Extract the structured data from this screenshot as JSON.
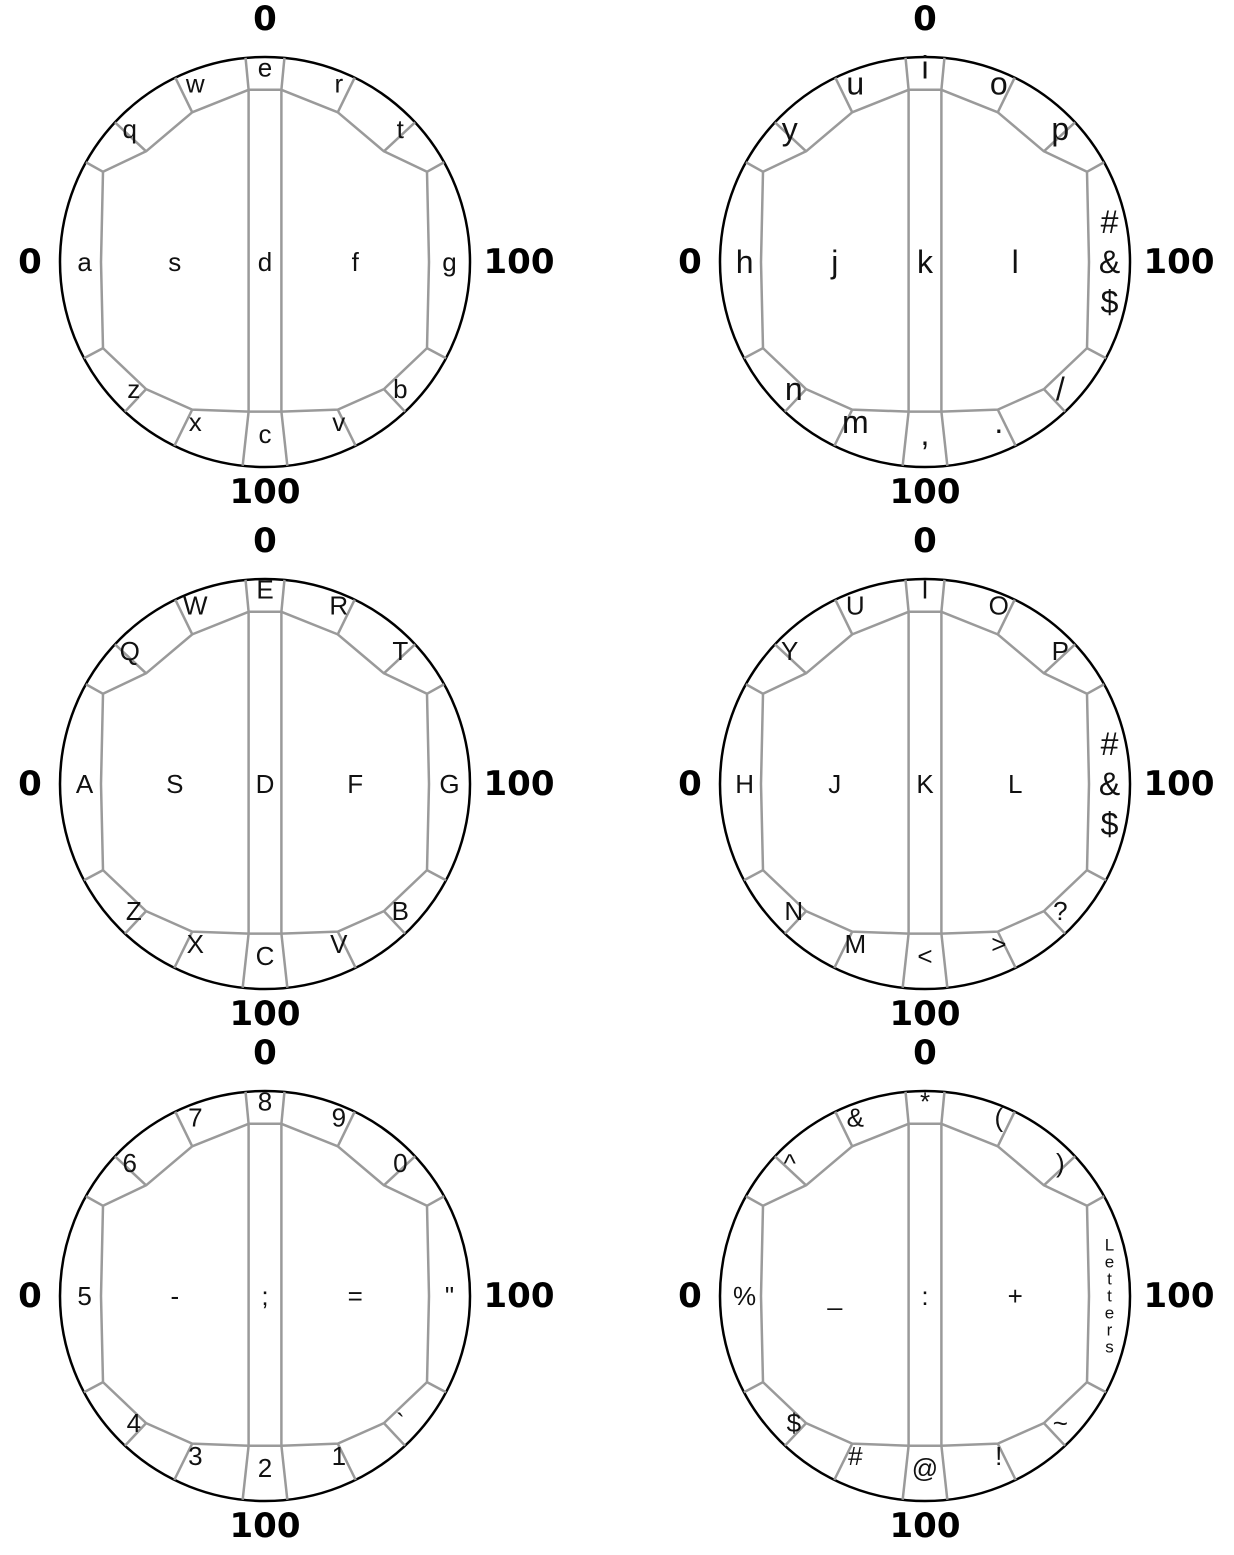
{
  "scale": {
    "min": "0",
    "max": "100"
  },
  "dials": [
    {
      "id": "lowercase-left",
      "ring_top": [
        "w",
        "e",
        "r"
      ],
      "ring_upper_left": "q",
      "ring_upper_right": "t",
      "ring_left": "a",
      "ring_right": "g",
      "ring_lower_left": "z",
      "ring_lower_right": "b",
      "ring_bottom": [
        "x",
        "c",
        "v"
      ],
      "inner_left": "s",
      "inner_center": "d",
      "inner_right": "f",
      "right_column": []
    },
    {
      "id": "lowercase-right",
      "ring_top": [
        "u",
        "i",
        "o"
      ],
      "ring_upper_left": "y",
      "ring_upper_right": "p",
      "ring_left": "h",
      "ring_right": "",
      "ring_lower_left": "n",
      "ring_lower_right": "/",
      "ring_bottom": [
        "m",
        ",",
        "."
      ],
      "inner_left": "j",
      "inner_center": "k",
      "inner_right": "l",
      "right_column": [
        "#",
        "&",
        "$"
      ]
    },
    {
      "id": "uppercase-left",
      "ring_top": [
        "W",
        "E",
        "R"
      ],
      "ring_upper_left": "Q",
      "ring_upper_right": "T",
      "ring_left": "A",
      "ring_right": "G",
      "ring_lower_left": "Z",
      "ring_lower_right": "B",
      "ring_bottom": [
        "X",
        "C",
        "V"
      ],
      "inner_left": "S",
      "inner_center": "D",
      "inner_right": "F",
      "right_column": []
    },
    {
      "id": "uppercase-right",
      "ring_top": [
        "U",
        "I",
        "O"
      ],
      "ring_upper_left": "Y",
      "ring_upper_right": "P",
      "ring_left": "H",
      "ring_right": "",
      "ring_lower_left": "N",
      "ring_lower_right": "?",
      "ring_bottom": [
        "M",
        "<",
        ">"
      ],
      "inner_left": "J",
      "inner_center": "K",
      "inner_right": "L",
      "right_column": [
        "#",
        "&",
        "$"
      ]
    },
    {
      "id": "numbers-left",
      "ring_top": [
        "7",
        "8",
        "9"
      ],
      "ring_upper_left": "6",
      "ring_upper_right": "0",
      "ring_left": "5",
      "ring_right": "\"",
      "ring_lower_left": "4",
      "ring_lower_right": "`",
      "ring_bottom": [
        "3",
        "2",
        "1"
      ],
      "inner_left": "-",
      "inner_center": ";",
      "inner_right": "=",
      "right_column": []
    },
    {
      "id": "symbols-right",
      "ring_top": [
        "&",
        "*",
        "("
      ],
      "ring_upper_left": "^",
      "ring_upper_right": ")",
      "ring_left": "%",
      "ring_right": "",
      "ring_lower_left": "$",
      "ring_lower_right": "~",
      "ring_bottom": [
        "#",
        "@",
        "!"
      ],
      "inner_left": "_",
      "inner_center": ":",
      "inner_right": "+",
      "right_column": [
        "L",
        "e",
        "t",
        "t",
        "e",
        "r",
        "s"
      ]
    }
  ]
}
